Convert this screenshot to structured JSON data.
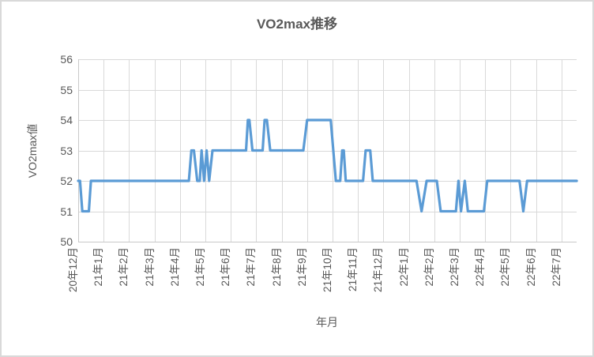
{
  "chart": {
    "title": "VO2max推移",
    "y_axis_title": "VO2max値",
    "x_axis_title": "年月",
    "colors": {
      "line": "#5b9bd5",
      "gridline": "#d9d9d9",
      "axis_line": "#c9c9c9",
      "text": "#595959",
      "border": "#d9d9d9"
    }
  },
  "chart_data": {
    "type": "line",
    "title": "VO2max推移",
    "xlabel": "年月",
    "ylabel": "VO2max値",
    "ylim": [
      50,
      56
    ],
    "y_ticks": [
      50,
      51,
      52,
      53,
      54,
      55,
      56
    ],
    "x_tick_labels": [
      "20年12月",
      "21年1月",
      "21年2月",
      "21年3月",
      "21年4月",
      "21年5月",
      "21年6月",
      "21年7月",
      "21年8月",
      "21年9月",
      "21年10月",
      "21年11月",
      "21年12月",
      "22年1月",
      "22年2月",
      "22年3月",
      "22年4月",
      "22年5月",
      "22年6月",
      "22年7月"
    ],
    "grid": true,
    "legend": false,
    "series": [
      {
        "name": "VO2max値",
        "x_unit": "months_after_first_tick",
        "points": [
          [
            0,
            52
          ],
          [
            0.07,
            52
          ],
          [
            0.16,
            51
          ],
          [
            0.42,
            51
          ],
          [
            0.5,
            52
          ],
          [
            4.35,
            52
          ],
          [
            4.45,
            53
          ],
          [
            4.55,
            53
          ],
          [
            4.68,
            52
          ],
          [
            4.78,
            52
          ],
          [
            4.85,
            53
          ],
          [
            4.95,
            52
          ],
          [
            5.05,
            53
          ],
          [
            5.15,
            52
          ],
          [
            5.28,
            53
          ],
          [
            6.6,
            53
          ],
          [
            6.67,
            54
          ],
          [
            6.73,
            54
          ],
          [
            6.85,
            53
          ],
          [
            7.25,
            53
          ],
          [
            7.33,
            54
          ],
          [
            7.42,
            54
          ],
          [
            7.55,
            53
          ],
          [
            8.85,
            53
          ],
          [
            9.0,
            54
          ],
          [
            9.93,
            54
          ],
          [
            10.13,
            52
          ],
          [
            10.3,
            52
          ],
          [
            10.38,
            53
          ],
          [
            10.44,
            53
          ],
          [
            10.52,
            52
          ],
          [
            11.2,
            52
          ],
          [
            11.3,
            53
          ],
          [
            11.48,
            53
          ],
          [
            11.58,
            52
          ],
          [
            13.3,
            52
          ],
          [
            13.5,
            51
          ],
          [
            13.7,
            52
          ],
          [
            14.1,
            52
          ],
          [
            14.25,
            51
          ],
          [
            14.85,
            51
          ],
          [
            14.95,
            52
          ],
          [
            15.05,
            51
          ],
          [
            15.2,
            52
          ],
          [
            15.32,
            51
          ],
          [
            15.95,
            51
          ],
          [
            16.08,
            52
          ],
          [
            17.35,
            52
          ],
          [
            17.5,
            51
          ],
          [
            17.65,
            52
          ],
          [
            19.6,
            52
          ]
        ]
      }
    ]
  }
}
